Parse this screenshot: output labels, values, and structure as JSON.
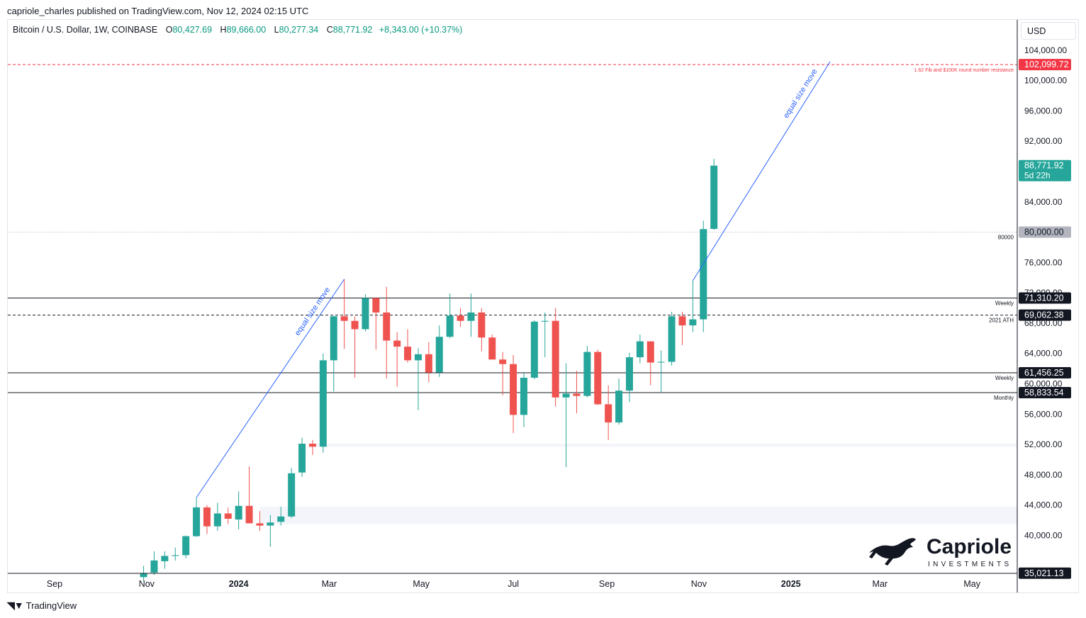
{
  "header": {
    "published_by": "capriole_charles published on TradingView.com, Nov 12, 2024 02:15 UTC"
  },
  "symbol": {
    "name": "Bitcoin / U.S. Dollar, 1W, COINBASE",
    "open_label": "O",
    "open": "80,427.69",
    "high_label": "H",
    "high": "89,666.00",
    "low_label": "L",
    "low": "80,277.34",
    "close_label": "C",
    "close": "88,771.92",
    "change": "+8,343.00 (+10.37%)"
  },
  "currency": "USD",
  "footer": {
    "logo_icon": "tradingview-logo-icon",
    "brand": "TradingView"
  },
  "watermark": {
    "name": "Capriole",
    "sub": "INVESTMENTS",
    "icon": "horse-logo-icon"
  },
  "colors": {
    "up": "#26a69a",
    "down": "#ef5350",
    "resistance": "#f23645",
    "trendline": "#2962ff",
    "last_price": "#26a69a"
  },
  "chart_data": {
    "type": "candlestick",
    "title": "Bitcoin / U.S. Dollar, 1W, COINBASE",
    "y_axis": {
      "ylim": [
        35000,
        108000
      ],
      "ticks": [
        104000,
        100000,
        96000,
        92000,
        88000,
        84000,
        80000,
        76000,
        72000,
        68000,
        64000,
        60000,
        56000,
        52000,
        48000,
        44000,
        40000
      ],
      "tick_labels": [
        "104,000.00",
        "100,000.00",
        "96,000.00",
        "92,000.00",
        "88,000.00",
        "84,000.00",
        "80,000.00",
        "76,000.00",
        "72,000.00",
        "68,000.00",
        "64,000.00",
        "60,000.00",
        "56,000.00",
        "52,000.00",
        "48,000.00",
        "44,000.00",
        "40,000.00"
      ]
    },
    "x_axis": {
      "labels": [
        {
          "text": "Sep",
          "date": "2023-09-01",
          "bold": false
        },
        {
          "text": "Nov",
          "date": "2023-11-01",
          "bold": false
        },
        {
          "text": "2024",
          "date": "2024-01-01",
          "bold": true
        },
        {
          "text": "Mar",
          "date": "2024-03-01",
          "bold": false
        },
        {
          "text": "May",
          "date": "2024-05-01",
          "bold": false
        },
        {
          "text": "Jul",
          "date": "2024-07-01",
          "bold": false
        },
        {
          "text": "Sep",
          "date": "2024-09-01",
          "bold": false
        },
        {
          "text": "Nov",
          "date": "2024-11-01",
          "bold": false
        },
        {
          "text": "2025",
          "date": "2025-01-01",
          "bold": true
        },
        {
          "text": "Mar",
          "date": "2025-03-01",
          "bold": false
        },
        {
          "text": "May",
          "date": "2025-05-01",
          "bold": false
        }
      ]
    },
    "candles": [
      {
        "date": "2023-10-30",
        "o": 34500,
        "h": 36000,
        "l": 34000,
        "c": 35000
      },
      {
        "date": "2023-11-06",
        "o": 35100,
        "h": 37900,
        "l": 34800,
        "c": 36700
      },
      {
        "date": "2023-11-13",
        "o": 36600,
        "h": 37900,
        "l": 35600,
        "c": 37300
      },
      {
        "date": "2023-11-20",
        "o": 37300,
        "h": 38400,
        "l": 36700,
        "c": 37400
      },
      {
        "date": "2023-11-27",
        "o": 37400,
        "h": 40000,
        "l": 37000,
        "c": 39900
      },
      {
        "date": "2023-12-04",
        "o": 39900,
        "h": 45000,
        "l": 39800,
        "c": 43700
      },
      {
        "date": "2023-12-11",
        "o": 43700,
        "h": 44000,
        "l": 40200,
        "c": 41200
      },
      {
        "date": "2023-12-18",
        "o": 41200,
        "h": 44300,
        "l": 40600,
        "c": 42900
      },
      {
        "date": "2023-12-25",
        "o": 42900,
        "h": 43700,
        "l": 41500,
        "c": 42200
      },
      {
        "date": "2024-01-01",
        "o": 42100,
        "h": 45800,
        "l": 40800,
        "c": 43900
      },
      {
        "date": "2024-01-08",
        "o": 43900,
        "h": 49100,
        "l": 41600,
        "c": 41600
      },
      {
        "date": "2024-01-15",
        "o": 41600,
        "h": 43200,
        "l": 40600,
        "c": 41300
      },
      {
        "date": "2024-01-22",
        "o": 41300,
        "h": 42700,
        "l": 38500,
        "c": 41700
      },
      {
        "date": "2024-01-29",
        "o": 41800,
        "h": 43800,
        "l": 41300,
        "c": 42500
      },
      {
        "date": "2024-02-05",
        "o": 42500,
        "h": 48900,
        "l": 42300,
        "c": 48200
      },
      {
        "date": "2024-02-12",
        "o": 48300,
        "h": 52900,
        "l": 47700,
        "c": 52100
      },
      {
        "date": "2024-02-19",
        "o": 52100,
        "h": 52600,
        "l": 50600,
        "c": 51700
      },
      {
        "date": "2024-02-26",
        "o": 51700,
        "h": 64000,
        "l": 50900,
        "c": 63100
      },
      {
        "date": "2024-03-04",
        "o": 63100,
        "h": 69000,
        "l": 59000,
        "c": 68900
      },
      {
        "date": "2024-03-11",
        "o": 68900,
        "h": 73800,
        "l": 64600,
        "c": 68300
      },
      {
        "date": "2024-03-18",
        "o": 68300,
        "h": 68900,
        "l": 60800,
        "c": 67200
      },
      {
        "date": "2024-03-25",
        "o": 67200,
        "h": 71800,
        "l": 66900,
        "c": 71300
      },
      {
        "date": "2024-04-01",
        "o": 71300,
        "h": 71400,
        "l": 64500,
        "c": 69400
      },
      {
        "date": "2024-04-08",
        "o": 69400,
        "h": 72800,
        "l": 60700,
        "c": 65700
      },
      {
        "date": "2024-04-15",
        "o": 65700,
        "h": 66800,
        "l": 59600,
        "c": 64900
      },
      {
        "date": "2024-04-22",
        "o": 64900,
        "h": 67200,
        "l": 62800,
        "c": 63100
      },
      {
        "date": "2024-04-29",
        "o": 63100,
        "h": 64700,
        "l": 56500,
        "c": 63900
      },
      {
        "date": "2024-05-06",
        "o": 63900,
        "h": 65500,
        "l": 60200,
        "c": 61500
      },
      {
        "date": "2024-05-13",
        "o": 61500,
        "h": 67700,
        "l": 60900,
        "c": 66200
      },
      {
        "date": "2024-05-20",
        "o": 66200,
        "h": 71900,
        "l": 66000,
        "c": 69000
      },
      {
        "date": "2024-05-27",
        "o": 69000,
        "h": 70000,
        "l": 67500,
        "c": 68300
      },
      {
        "date": "2024-06-03",
        "o": 68300,
        "h": 71900,
        "l": 66200,
        "c": 69400
      },
      {
        "date": "2024-06-10",
        "o": 69400,
        "h": 70000,
        "l": 64300,
        "c": 66100
      },
      {
        "date": "2024-06-17",
        "o": 66100,
        "h": 66500,
        "l": 63500,
        "c": 63200
      },
      {
        "date": "2024-06-24",
        "o": 63200,
        "h": 64200,
        "l": 58500,
        "c": 62600
      },
      {
        "date": "2024-07-01",
        "o": 62600,
        "h": 63800,
        "l": 53500,
        "c": 55900
      },
      {
        "date": "2024-07-08",
        "o": 55900,
        "h": 61400,
        "l": 54300,
        "c": 60800
      },
      {
        "date": "2024-07-15",
        "o": 60800,
        "h": 68400,
        "l": 60600,
        "c": 68200
      },
      {
        "date": "2024-07-22",
        "o": 68200,
        "h": 69400,
        "l": 63500,
        "c": 68300
      },
      {
        "date": "2024-07-29",
        "o": 68300,
        "h": 70000,
        "l": 57000,
        "c": 58200
      },
      {
        "date": "2024-08-05",
        "o": 58200,
        "h": 62700,
        "l": 49000,
        "c": 58700
      },
      {
        "date": "2024-08-12",
        "o": 58700,
        "h": 61700,
        "l": 56100,
        "c": 58400
      },
      {
        "date": "2024-08-19",
        "o": 58400,
        "h": 65000,
        "l": 58200,
        "c": 64200
      },
      {
        "date": "2024-08-26",
        "o": 64200,
        "h": 64500,
        "l": 57200,
        "c": 57300
      },
      {
        "date": "2024-09-02",
        "o": 57300,
        "h": 59800,
        "l": 52600,
        "c": 54900
      },
      {
        "date": "2024-09-09",
        "o": 54900,
        "h": 60700,
        "l": 54600,
        "c": 59100
      },
      {
        "date": "2024-09-16",
        "o": 59100,
        "h": 64100,
        "l": 57600,
        "c": 63500
      },
      {
        "date": "2024-09-23",
        "o": 63500,
        "h": 66500,
        "l": 62700,
        "c": 65600
      },
      {
        "date": "2024-09-30",
        "o": 65600,
        "h": 65600,
        "l": 59800,
        "c": 62800
      },
      {
        "date": "2024-10-07",
        "o": 62800,
        "h": 64400,
        "l": 58900,
        "c": 62900
      },
      {
        "date": "2024-10-14",
        "o": 62900,
        "h": 69500,
        "l": 62400,
        "c": 68900
      },
      {
        "date": "2024-10-21",
        "o": 68900,
        "h": 69500,
        "l": 65100,
        "c": 67700
      },
      {
        "date": "2024-10-28",
        "o": 67700,
        "h": 73600,
        "l": 66800,
        "c": 68500
      },
      {
        "date": "2024-11-04",
        "o": 68500,
        "h": 81500,
        "l": 66800,
        "c": 80400
      },
      {
        "date": "2024-11-11",
        "o": 80428,
        "h": 89666,
        "l": 80277,
        "c": 88772
      }
    ],
    "price_lines": [
      {
        "price": 102099.72,
        "label": "102,099.72",
        "color": "#f23645",
        "style": "dashed",
        "note": "1.62 Fib and $100K round number resistance"
      },
      {
        "price": 80000,
        "label": "80,000.00",
        "color": "#b2b5be",
        "style": "dotted",
        "note": "80000"
      },
      {
        "price": 71310.2,
        "label": "71,310.20",
        "color": "#131722",
        "style": "solid",
        "note": "Weekly"
      },
      {
        "price": 69062.38,
        "label": "69,062.38",
        "color": "#131722",
        "style": "dashed",
        "note": "2021 ATH"
      },
      {
        "price": 61456.25,
        "label": "61,456.25",
        "color": "#131722",
        "style": "solid",
        "note": "Weekly"
      },
      {
        "price": 58833.54,
        "label": "58,833.54",
        "color": "#131722",
        "style": "solid",
        "note": "Monthly"
      }
    ],
    "last_price": {
      "price": 88771.92,
      "label": "88,771.92",
      "countdown": "5d 22h"
    },
    "bottom_price_label": {
      "price": 35021.13,
      "label": "35,021.13"
    },
    "trendlines": [
      {
        "from_date": "2023-12-04",
        "from_price": 45000,
        "to_date": "2024-03-11",
        "to_price": 73800,
        "label": "equal size move"
      },
      {
        "from_date": "2024-10-28",
        "from_price": 73600,
        "to_date": "2025-01-27",
        "to_price": 102500,
        "label": "equal size move"
      }
    ],
    "zones": [
      {
        "from_date": "2024-01-15",
        "to_date": "2025-06-01",
        "low": 41500,
        "high": 43800
      },
      {
        "from_date": "2024-02-19",
        "to_date": "2025-06-01",
        "low": 51700,
        "high": 52100
      }
    ]
  }
}
